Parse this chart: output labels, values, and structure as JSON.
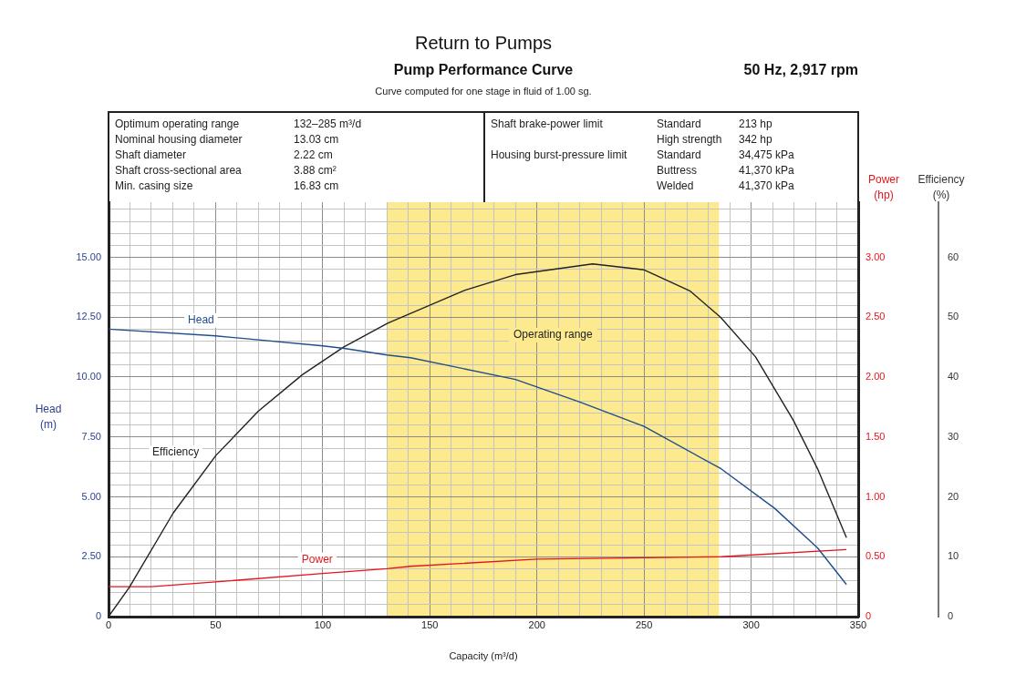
{
  "chart_data": {
    "type": "line",
    "title": "Return to Pumps",
    "subtitle": "Pump Performance Curve",
    "annotations": [
      "50 Hz, 2,917 rpm",
      "Curve computed for one stage in fluid of 1.00 sg.",
      "Optimum operating range",
      "132–285 m³/d",
      "Nominal housing diameter",
      "13.03 cm",
      "Shaft diameter",
      "2.22 cm",
      "Shaft cross-sectional area",
      "3.88 cm²",
      "Min. casing size",
      "16.83 cm",
      "Shaft brake-power limit",
      "Standard",
      "213 hp",
      "High strength",
      "342 hp",
      "Housing burst-pressure limit",
      "Standard",
      "34,475 kPa",
      "Buttress",
      "41,370 kPa",
      "Welded",
      "41,370 kPa"
    ],
    "xlabel": "Capacity (m³/d)",
    "ylabel": "Head (m)",
    "y2label": "Power (hp)",
    "y3label": "Efficiency (%)",
    "xlim": [
      0,
      350
    ],
    "xticks": [
      0,
      {
        "value": 10,
        "label": null
      },
      {
        "value": 20,
        "label": null
      },
      {
        "value": 30,
        "label": null
      },
      {
        "value": 40,
        "label": null
      },
      50,
      {
        "value": 60,
        "label": null
      },
      {
        "value": 70,
        "label": null
      },
      {
        "value": 80,
        "label": null
      },
      {
        "value": 90,
        "label": null
      },
      100,
      {
        "value": 110,
        "label": null
      },
      {
        "value": 120,
        "label": null
      },
      {
        "value": 130,
        "label": null
      },
      {
        "value": 140,
        "label": null
      },
      150,
      {
        "value": 160,
        "label": null
      },
      {
        "value": 170,
        "label": null
      },
      {
        "value": 180,
        "label": null
      },
      {
        "value": 190,
        "label": null
      },
      200,
      {
        "value": 210,
        "label": null
      },
      {
        "value": 220,
        "label": null
      },
      {
        "value": 230,
        "label": null
      },
      {
        "value": 240,
        "label": null
      },
      250,
      {
        "value": 260,
        "label": null
      },
      {
        "value": 270,
        "label": null
      },
      {
        "value": 280,
        "label": null
      },
      {
        "value": 290,
        "label": null
      },
      300,
      {
        "value": 310,
        "label": null
      },
      {
        "value": 320,
        "label": null
      },
      {
        "value": 330,
        "label": null
      },
      {
        "value": 340,
        "label": null
      },
      350
    ],
    "ylim": [
      0,
      17.3
    ],
    "yticks": [
      0,
      {
        "value": 0.5,
        "label": null
      },
      {
        "value": 1,
        "label": null
      },
      {
        "value": 1.5,
        "label": null
      },
      {
        "value": 2,
        "label": null
      },
      {
        "value": 2.5,
        "label": "2.50"
      },
      {
        "value": 3,
        "label": null
      },
      {
        "value": 3.5,
        "label": null
      },
      {
        "value": 4,
        "label": null
      },
      {
        "value": 4.5,
        "label": null
      },
      {
        "value": 5,
        "label": "5.00"
      },
      {
        "value": 5.5,
        "label": null
      },
      {
        "value": 6,
        "label": null
      },
      {
        "value": 6.5,
        "label": null
      },
      {
        "value": 7,
        "label": null
      },
      {
        "value": 7.5,
        "label": "7.50"
      },
      {
        "value": 8,
        "label": null
      },
      {
        "value": 8.5,
        "label": null
      },
      {
        "value": 9,
        "label": null
      },
      {
        "value": 9.5,
        "label": null
      },
      {
        "value": 10,
        "label": "10.00"
      },
      {
        "value": 10.5,
        "label": null
      },
      {
        "value": 11,
        "label": null
      },
      {
        "value": 11.5,
        "label": null
      },
      {
        "value": 12,
        "label": null
      },
      {
        "value": 12.5,
        "label": "12.50"
      },
      {
        "value": 13,
        "label": null
      },
      {
        "value": 13.5,
        "label": null
      },
      {
        "value": 14,
        "label": null
      },
      {
        "value": 14.5,
        "label": null
      },
      {
        "value": 15,
        "label": "15.00"
      },
      {
        "value": 15.5,
        "label": null
      },
      {
        "value": 16,
        "label": null
      },
      {
        "value": 16.5,
        "label": null
      },
      {
        "value": 17,
        "label": null
      }
    ],
    "y2lim": [
      0,
      3.46
    ],
    "y2ticks": [
      0,
      {
        "value": 0.5,
        "label": "0.50"
      },
      {
        "value": 1,
        "label": "1.00"
      },
      {
        "value": 1.5,
        "label": "1.50"
      },
      {
        "value": 2,
        "label": "2.00"
      },
      {
        "value": 2.5,
        "label": "2.50"
      },
      {
        "value": 3,
        "label": "3.00"
      }
    ],
    "y3lim": [
      0,
      69.2
    ],
    "y3ticks": [
      0,
      10,
      20,
      30,
      40,
      50,
      60
    ],
    "grid": true,
    "legend": false,
    "marker": "none",
    "bands": [
      {
        "axis": "x",
        "from": 130,
        "to": 285,
        "label": "Operating range",
        "color": "#fdea8e"
      }
    ],
    "series": [
      {
        "name": "Head",
        "color": "#1f4e8c",
        "axis": "y",
        "x": [
          0,
          50,
          100,
          110,
          130,
          141,
          190,
          220,
          250,
          286,
          311,
          331,
          344.5
        ],
        "values": [
          12.0,
          11.72,
          11.3,
          11.2,
          10.92,
          10.81,
          9.9,
          8.96,
          7.94,
          6.17,
          4.52,
          2.87,
          1.34
        ]
      },
      {
        "name": "Efficiency",
        "color": "#222222",
        "axis": "y3",
        "x": [
          0,
          9.7,
          30.2,
          50.1,
          69.9,
          90.5,
          109.7,
          130.3,
          166.4,
          189.9,
          226,
          250.1,
          271.4,
          285.7,
          302,
          319.7,
          331,
          344.5
        ],
        "values": [
          0,
          4.9,
          17.3,
          26.9,
          34.3,
          40.4,
          45.0,
          49.0,
          54.5,
          57.1,
          58.9,
          57.9,
          54.4,
          50.0,
          43.4,
          32.8,
          24.7,
          13.2
        ]
      },
      {
        "name": "Power",
        "color": "#e8141c",
        "axis": "y2",
        "x": [
          0,
          20,
          50,
          100,
          130,
          141,
          200,
          286,
          344.5
        ],
        "values": [
          0.25,
          0.25,
          0.29,
          0.36,
          0.4,
          0.42,
          0.48,
          0.5,
          0.56
        ]
      }
    ]
  }
}
